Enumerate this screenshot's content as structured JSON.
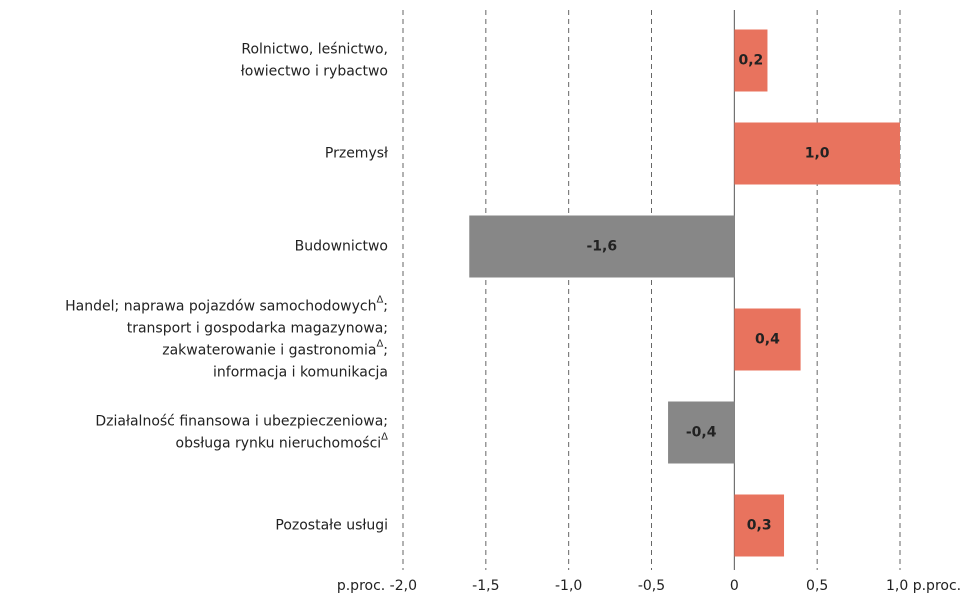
{
  "chart_data": {
    "type": "bar",
    "orientation": "horizontal",
    "categories": [
      [
        "Rolnictwo, leśnictwo,",
        "łowiectwo i rybactwo"
      ],
      [
        "Przemysł"
      ],
      [
        "Budownictwo"
      ],
      [
        {
          "text": "Handel; naprawa pojazdów samochodowych",
          "sup": "Δ",
          "after": ";"
        },
        "transport i gospodarka magazynowa;",
        {
          "text": "zakwaterowanie i gastronomia",
          "sup": "Δ",
          "after": ";"
        },
        "informacja i komunikacja"
      ],
      [
        "Działalność finansowa i ubezpieczeniowa;",
        {
          "text": "obsługa rynku nieruchomości",
          "sup": "Δ"
        }
      ],
      [
        "Pozostałe  usługi"
      ]
    ],
    "values": [
      0.2,
      1.0,
      -1.6,
      0.4,
      -0.4,
      0.3
    ],
    "value_labels": [
      "0,2",
      "1,0",
      "-1,6",
      "0,4",
      "-0,4",
      "0,3"
    ],
    "colors": [
      "#e8735e",
      "#e8735e",
      "#878787",
      "#e8735e",
      "#878787",
      "#e8735e"
    ],
    "xlim": [
      -2.0,
      1.0
    ],
    "xticks": [
      {
        "value": -2.0,
        "label": "p.proc. -2,0"
      },
      {
        "value": -1.5,
        "label": "-1,5"
      },
      {
        "value": -1.0,
        "label": "-1,0"
      },
      {
        "value": -0.5,
        "label": "-0,5"
      },
      0,
      {
        "value": 0.5,
        "label": "0,5"
      },
      {
        "value": 1.0,
        "label": "1,0 p.proc."
      }
    ],
    "grid": true
  }
}
